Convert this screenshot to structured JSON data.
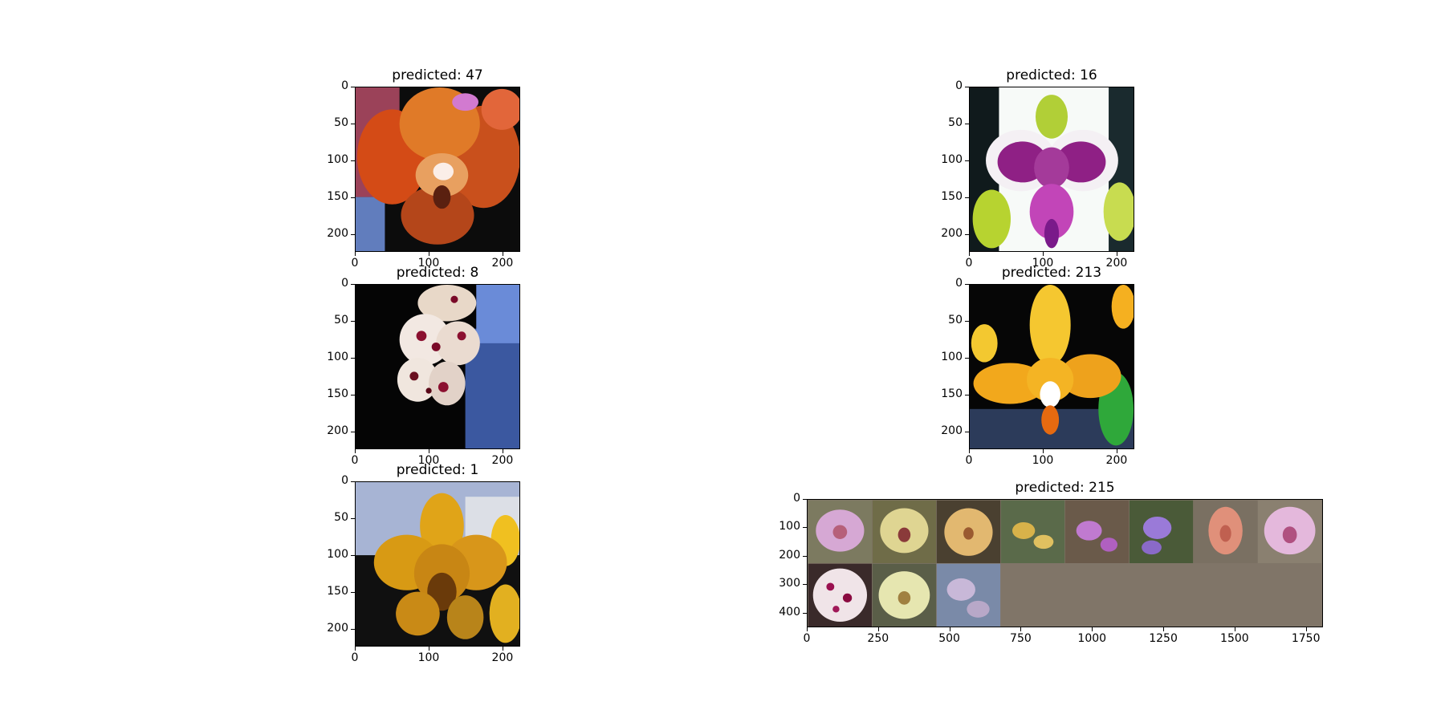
{
  "figure": {
    "panels": [
      {
        "id": "p1",
        "title": "predicted: 47",
        "subject": "orange-red phalaenopsis orchid",
        "palette": [
          "#c4521a",
          "#e07d2a",
          "#f2f2f2",
          "#1a1a1a"
        ]
      },
      {
        "id": "p2",
        "title": "predicted: 16",
        "subject": "white and magenta spotted phalaenopsis orchid",
        "palette": [
          "#ffffff",
          "#8b1a7a",
          "#b6cf3b",
          "#0b0b0b"
        ]
      },
      {
        "id": "p3",
        "title": "predicted: 8",
        "subject": "white orchids with dark red spots",
        "palette": [
          "#f4e8e0",
          "#8b1030",
          "#3e5a9e",
          "#050505"
        ]
      },
      {
        "id": "p4",
        "title": "predicted: 213",
        "subject": "yellow-orange orchid",
        "palette": [
          "#f2b21f",
          "#e88414",
          "#36a836",
          "#050505"
        ]
      },
      {
        "id": "p5",
        "title": "predicted: 1",
        "subject": "yellow orchid",
        "palette": [
          "#e0a216",
          "#c07a10",
          "#d0d4de",
          "#050505"
        ]
      },
      {
        "id": "p6",
        "title": "predicted: 215",
        "subject": "grid of orchid thumbnails",
        "palette": [
          "#d6a8d4",
          "#dfd592",
          "#e2b870",
          "#807568"
        ]
      }
    ],
    "small_axis": {
      "yticks": [
        "0",
        "50",
        "100",
        "150",
        "200"
      ],
      "xticks": [
        "0",
        "100",
        "200"
      ]
    },
    "grid_axis": {
      "yticks": [
        "0",
        "100",
        "200",
        "300",
        "400"
      ],
      "xticks": [
        "0",
        "250",
        "500",
        "750",
        "1000",
        "1250",
        "1500",
        "1750"
      ]
    },
    "grid_tiles": [
      "pink phalaenopsis",
      "pale yellow orchid",
      "peach orchid",
      "yellow oncidium",
      "small purple orchids",
      "violet orchids",
      "salmon orchid",
      "pink-white orchid",
      "magenta-spotted white orchid",
      "pale green-yellow orchid",
      "pale lilac orchid"
    ]
  }
}
